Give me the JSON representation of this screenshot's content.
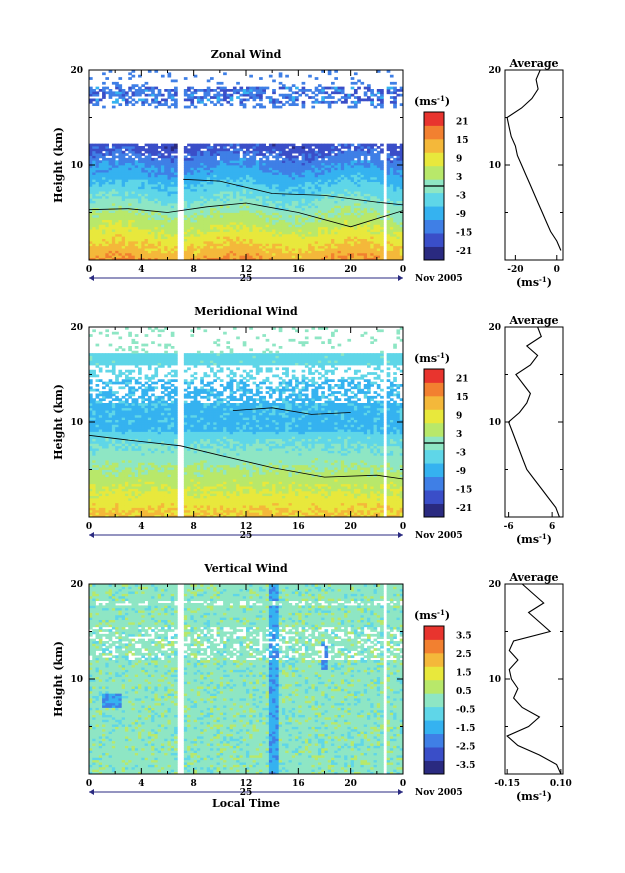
{
  "colors": {
    "palette": [
      "#2a2a80",
      "#3a4ec8",
      "#3f7fe6",
      "#35b2f0",
      "#5fd6e8",
      "#8ee6c4",
      "#b8e86a",
      "#e8e83c",
      "#f4b83a",
      "#f28030",
      "#e8342e"
    ]
  },
  "chart_data": [
    {
      "type": "heatmap",
      "title": "Zonal Wind",
      "ylabel": "Height (km)",
      "xlabel": "",
      "ylim": [
        0,
        20
      ],
      "xlim": [
        0,
        24
      ],
      "yticks": [
        "10",
        "20"
      ],
      "xticks": [
        "0",
        "4",
        "8",
        "12",
        "16",
        "20",
        "0"
      ],
      "date_label": "25",
      "month_label": "Nov 2005",
      "colorbar": {
        "unit": "(ms",
        "unit_sup": "-1",
        "unit_close": ")",
        "range": [
          -24,
          24
        ],
        "tick_values": [
          21,
          15,
          9,
          3,
          -3,
          -9,
          -15,
          -21
        ],
        "tick_labels": [
          "21",
          "15",
          "9",
          "3",
          "-3",
          "-9",
          "-15",
          "-21"
        ],
        "zero_line": 0
      },
      "profile": {
        "title": "Average",
        "xlabel_unit": "(ms",
        "xlabel_sup": "-1",
        "xlabel_close": ")",
        "xlim": [
          -25,
          3
        ],
        "xticks": [
          "-20",
          "0"
        ],
        "xtick_values": [
          -20,
          0
        ],
        "yticks": [
          "10",
          "20"
        ],
        "heights": [
          1,
          2,
          3,
          4,
          5,
          6,
          7,
          8,
          9,
          10,
          11,
          12,
          13,
          14,
          15,
          16,
          17,
          18,
          19,
          20
        ],
        "values": [
          2,
          0,
          -3,
          -5,
          -7,
          -9,
          -11,
          -13,
          -15,
          -17,
          -19,
          -20,
          -22,
          -23,
          -24,
          -17,
          -12,
          -9,
          -10,
          -8
        ]
      }
    },
    {
      "type": "heatmap",
      "title": "Meridional Wind",
      "ylabel": "Height (km)",
      "xlabel": "",
      "ylim": [
        0,
        20
      ],
      "xlim": [
        0,
        24
      ],
      "yticks": [
        "10",
        "20"
      ],
      "xticks": [
        "0",
        "4",
        "8",
        "12",
        "16",
        "20",
        "0"
      ],
      "date_label": "25",
      "month_label": "Nov 2005",
      "colorbar": {
        "unit": "(ms",
        "unit_sup": "-1",
        "unit_close": ")",
        "range": [
          -24,
          24
        ],
        "tick_values": [
          21,
          15,
          9,
          3,
          -3,
          -9,
          -15,
          -21
        ],
        "tick_labels": [
          "21",
          "15",
          "9",
          "3",
          "-3",
          "-9",
          "-15",
          "-21"
        ],
        "zero_line": 0
      },
      "profile": {
        "title": "Average",
        "xlabel_unit": "(ms",
        "xlabel_sup": "-1",
        "xlabel_close": ")",
        "xlim": [
          -7,
          9
        ],
        "xticks": [
          "-6",
          "6"
        ],
        "xtick_values": [
          -6,
          6
        ],
        "yticks": [
          "10",
          "20"
        ],
        "heights": [
          0,
          1,
          2,
          3,
          4,
          5,
          6,
          7,
          8,
          9,
          10,
          11,
          12,
          13,
          14,
          15,
          16,
          17,
          18,
          19,
          20
        ],
        "values": [
          8,
          7,
          5,
          3,
          1,
          -1,
          -2,
          -3,
          -4,
          -5,
          -6,
          -3,
          -1,
          0,
          -2,
          -4,
          0,
          2,
          -1,
          3,
          2
        ]
      }
    },
    {
      "type": "heatmap",
      "title": "Vertical Wind",
      "ylabel": "Height (km)",
      "xlabel": "Local Time",
      "ylim": [
        0,
        20
      ],
      "xlim": [
        0,
        24
      ],
      "yticks": [
        "10",
        "20"
      ],
      "xticks": [
        "0",
        "4",
        "8",
        "12",
        "16",
        "20",
        "0"
      ],
      "date_label": "25",
      "month_label": "Nov 2005",
      "colorbar": {
        "unit": "(ms",
        "unit_sup": "-1",
        "unit_close": ")",
        "range": [
          -4,
          4
        ],
        "tick_values": [
          3.5,
          2.5,
          1.5,
          0.5,
          -0.5,
          -1.5,
          -2.5,
          -3.5
        ],
        "tick_labels": [
          "3.5",
          "2.5",
          "1.5",
          "0.5",
          "-0.5",
          "-1.5",
          "-2.5",
          "-3.5"
        ],
        "zero_line": null
      },
      "profile": {
        "title": "Average",
        "xlabel_unit": "(ms",
        "xlabel_sup": "-1",
        "xlabel_close": ")",
        "xlim": [
          -0.16,
          0.11
        ],
        "xticks": [
          "-0.15",
          "0.10"
        ],
        "xtick_values": [
          -0.15,
          0.1
        ],
        "yticks": [
          "10",
          "20"
        ],
        "heights": [
          0,
          1,
          2,
          3,
          4,
          5,
          6,
          7,
          8,
          9,
          10,
          11,
          12,
          13,
          14,
          15,
          16,
          17,
          18,
          19,
          20
        ],
        "values": [
          0.1,
          0.08,
          0.0,
          -0.1,
          -0.15,
          -0.05,
          0.0,
          -0.08,
          -0.12,
          -0.1,
          -0.13,
          -0.14,
          -0.1,
          -0.14,
          -0.12,
          0.05,
          0.0,
          -0.05,
          0.02,
          -0.03,
          -0.08
        ]
      }
    }
  ]
}
